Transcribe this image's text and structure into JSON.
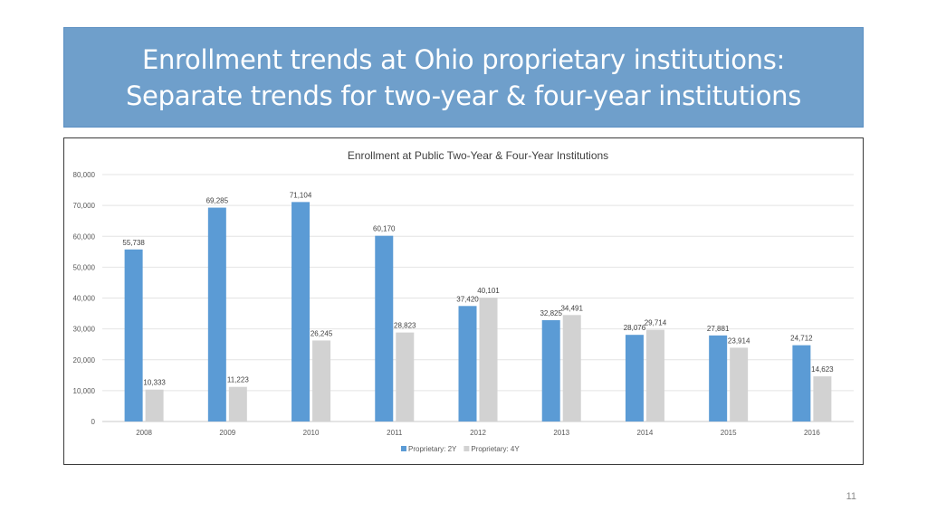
{
  "slide": {
    "title_line1": "Enrollment trends at Ohio proprietary institutions:",
    "title_line2": "Separate trends for two-year & four-year institutions",
    "page_number": "11"
  },
  "chart_data": {
    "type": "bar",
    "title": "Enrollment at Public Two-Year & Four-Year Institutions",
    "categories": [
      "2008",
      "2009",
      "2010",
      "2011",
      "2012",
      "2013",
      "2014",
      "2015",
      "2016"
    ],
    "series": [
      {
        "name": "Proprietary: 2Y",
        "color": "#5b9bd5",
        "values": [
          55738,
          69285,
          71104,
          60170,
          37420,
          32825,
          28076,
          27881,
          24712
        ],
        "labels": [
          "55,738",
          "69,285",
          "71,104",
          "60,170",
          "37,420",
          "32,825",
          "28,076",
          "27,881",
          "24,712"
        ]
      },
      {
        "name": "Proprietary: 4Y",
        "color": "#d2d2d2",
        "values": [
          10333,
          11223,
          26245,
          28823,
          40101,
          34491,
          29714,
          23914,
          14623
        ],
        "labels": [
          "10,333",
          "11,223",
          "26,245",
          "28,823",
          "40,101",
          "34,491",
          "29,714",
          "23,914",
          "14,623"
        ]
      }
    ],
    "y_ticks": [
      "0",
      "10,000",
      "20,000",
      "30,000",
      "40,000",
      "50,000",
      "60,000",
      "70,000",
      "80,000"
    ],
    "ylim": [
      0,
      80000
    ],
    "grid": true,
    "legend_position": "bottom"
  }
}
